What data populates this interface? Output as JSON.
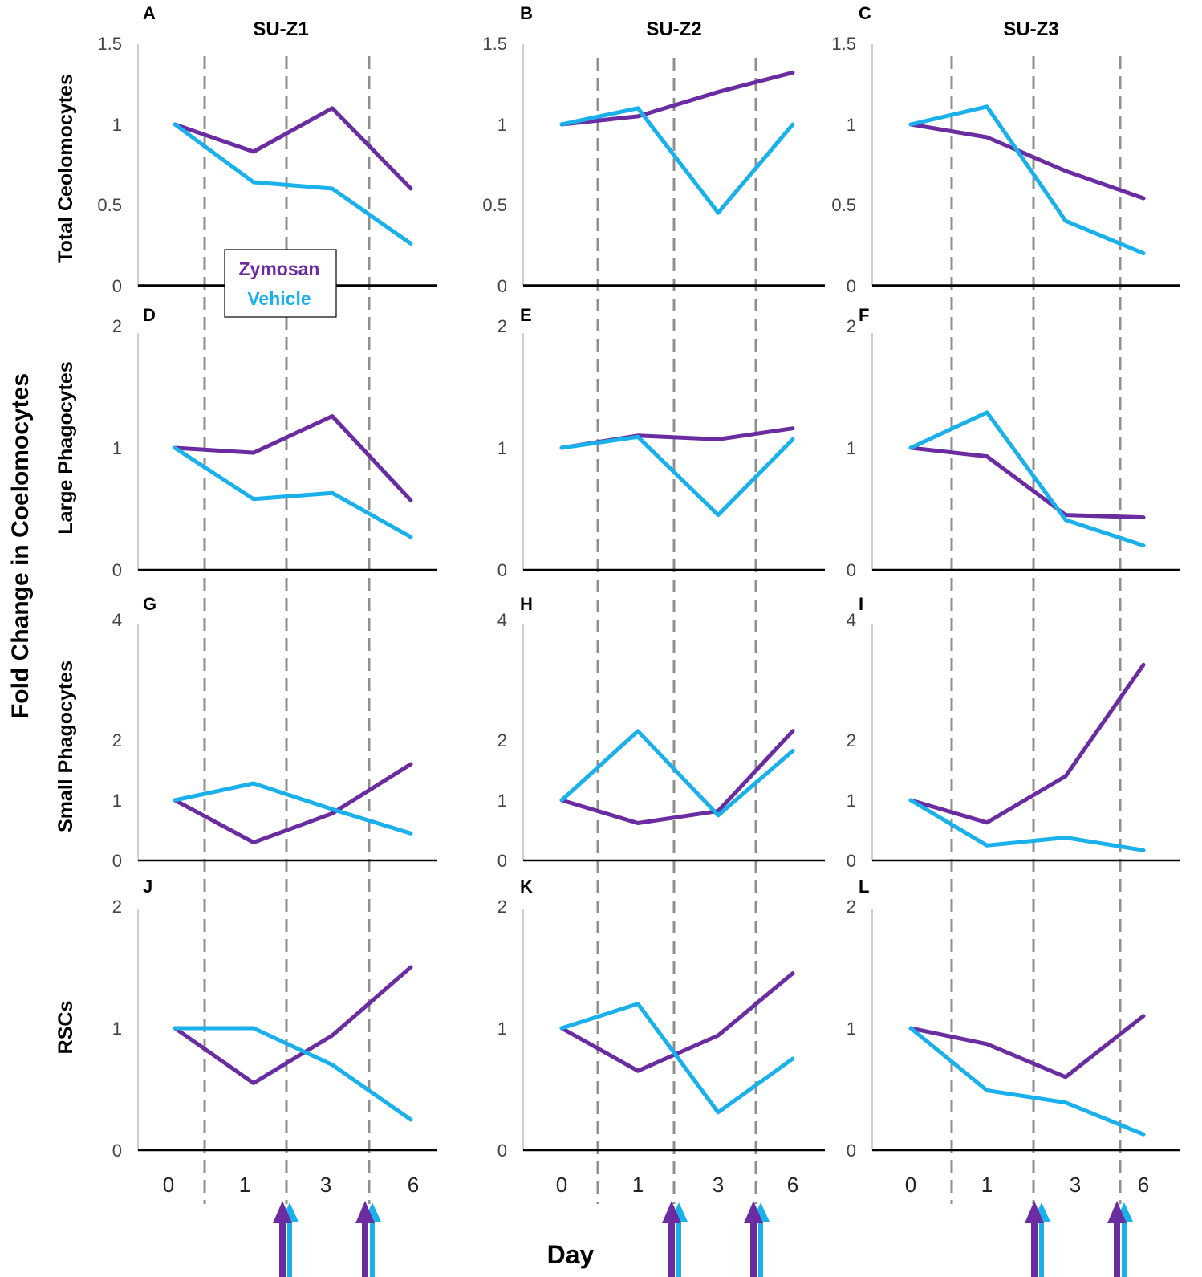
{
  "colors": {
    "zymosan": "#6a2ca0",
    "vehicle": "#1ab0ec",
    "dash": "#8f8f8f",
    "axis": "#000000"
  },
  "figure": {
    "y_axis_title": "Fold Change in Coelomocytes",
    "x_axis_title": "Day",
    "column_titles": [
      "SU-Z1",
      "SU-Z2",
      "SU-Z3"
    ],
    "row_labels": [
      "Total Ceolomocytes",
      "Large Phagocytes",
      "Small Phagocytes",
      "RSCs"
    ],
    "x_categories": [
      "0",
      "1",
      "3",
      "6"
    ],
    "legend": [
      {
        "label": "Zymosan",
        "color": "#6a2ca0"
      },
      {
        "label": "Vehicle",
        "color": "#1ab0ec"
      }
    ]
  },
  "chart_data": [
    {
      "type": "line",
      "panel": "A",
      "row_label": "Total Ceolomocytes",
      "title": "SU-Z1",
      "categories": [
        "0",
        "1",
        "3",
        "6"
      ],
      "ylim": [
        0,
        1.5
      ],
      "yticks": [
        "0",
        "0.5",
        "1",
        "1.5"
      ],
      "series": [
        {
          "name": "Zymosan",
          "values": [
            1.0,
            0.83,
            1.1,
            0.6
          ]
        },
        {
          "name": "Vehicle",
          "values": [
            1.0,
            0.64,
            0.6,
            0.26
          ]
        }
      ]
    },
    {
      "type": "line",
      "panel": "B",
      "row_label": "Total Ceolomocytes",
      "title": "SU-Z2",
      "categories": [
        "0",
        "1",
        "3",
        "6"
      ],
      "ylim": [
        0,
        1.5
      ],
      "yticks": [
        "0",
        "0.5",
        "1",
        "1.5"
      ],
      "series": [
        {
          "name": "Zymosan",
          "values": [
            1.0,
            1.05,
            1.2,
            1.32
          ]
        },
        {
          "name": "Vehicle",
          "values": [
            1.0,
            1.1,
            0.45,
            1.0
          ]
        }
      ]
    },
    {
      "type": "line",
      "panel": "C",
      "row_label": "Total Ceolomocytes",
      "title": "SU-Z3",
      "categories": [
        "0",
        "1",
        "3",
        "6"
      ],
      "ylim": [
        0,
        1.5
      ],
      "yticks": [
        "0",
        "0.5",
        "1",
        "1.5"
      ],
      "series": [
        {
          "name": "Zymosan",
          "values": [
            1.0,
            0.92,
            0.71,
            0.54
          ]
        },
        {
          "name": "Vehicle",
          "values": [
            1.0,
            1.11,
            0.4,
            0.2
          ]
        }
      ]
    },
    {
      "type": "line",
      "panel": "D",
      "row_label": "Large Phagocytes",
      "categories": [
        "0",
        "1",
        "3",
        "6"
      ],
      "ylim": [
        0,
        2
      ],
      "yticks": [
        "0",
        "1",
        "2"
      ],
      "series": [
        {
          "name": "Zymosan",
          "values": [
            1.0,
            0.96,
            1.26,
            0.57
          ]
        },
        {
          "name": "Vehicle",
          "values": [
            1.0,
            0.58,
            0.63,
            0.27
          ]
        }
      ]
    },
    {
      "type": "line",
      "panel": "E",
      "row_label": "Large Phagocytes",
      "categories": [
        "0",
        "1",
        "3",
        "6"
      ],
      "ylim": [
        0,
        2
      ],
      "yticks": [
        "0",
        "1",
        "2"
      ],
      "series": [
        {
          "name": "Zymosan",
          "values": [
            1.0,
            1.1,
            1.07,
            1.16
          ]
        },
        {
          "name": "Vehicle",
          "values": [
            1.0,
            1.09,
            0.45,
            1.07
          ]
        }
      ]
    },
    {
      "type": "line",
      "panel": "F",
      "row_label": "Large Phagocytes",
      "categories": [
        "0",
        "1",
        "3",
        "6"
      ],
      "ylim": [
        0,
        2
      ],
      "yticks": [
        "0",
        "1",
        "2"
      ],
      "series": [
        {
          "name": "Zymosan",
          "values": [
            1.0,
            0.93,
            0.45,
            0.43
          ]
        },
        {
          "name": "Vehicle",
          "values": [
            1.0,
            1.29,
            0.41,
            0.2
          ]
        }
      ]
    },
    {
      "type": "line",
      "panel": "G",
      "row_label": "Small Phagocytes",
      "categories": [
        "0",
        "1",
        "3",
        "6"
      ],
      "ylim": [
        0,
        4
      ],
      "yticks": [
        "0",
        "1",
        "2",
        "4"
      ],
      "series": [
        {
          "name": "Zymosan",
          "values": [
            1.0,
            0.3,
            0.78,
            1.6
          ]
        },
        {
          "name": "Vehicle",
          "values": [
            1.0,
            1.28,
            0.85,
            0.45
          ]
        }
      ]
    },
    {
      "type": "line",
      "panel": "H",
      "row_label": "Small Phagocytes",
      "categories": [
        "0",
        "1",
        "3",
        "6"
      ],
      "ylim": [
        0,
        4
      ],
      "yticks": [
        "0",
        "1",
        "2",
        "4"
      ],
      "series": [
        {
          "name": "Zymosan",
          "values": [
            1.0,
            0.62,
            0.82,
            2.15
          ]
        },
        {
          "name": "Vehicle",
          "values": [
            1.0,
            2.15,
            0.75,
            1.82
          ]
        }
      ]
    },
    {
      "type": "line",
      "panel": "I",
      "row_label": "Small Phagocytes",
      "categories": [
        "0",
        "1",
        "3",
        "6"
      ],
      "ylim": [
        0,
        4
      ],
      "yticks": [
        "0",
        "1",
        "2",
        "4"
      ],
      "series": [
        {
          "name": "Zymosan",
          "values": [
            1.0,
            0.63,
            1.4,
            3.25
          ]
        },
        {
          "name": "Vehicle",
          "values": [
            1.0,
            0.25,
            0.38,
            0.17
          ]
        }
      ]
    },
    {
      "type": "line",
      "panel": "J",
      "row_label": "RSCs",
      "categories": [
        "0",
        "1",
        "3",
        "6"
      ],
      "ylim": [
        0,
        2
      ],
      "yticks": [
        "0",
        "1",
        "2"
      ],
      "series": [
        {
          "name": "Zymosan",
          "values": [
            1.0,
            0.55,
            0.94,
            1.5
          ]
        },
        {
          "name": "Vehicle",
          "values": [
            1.0,
            1.0,
            0.7,
            0.25
          ]
        }
      ]
    },
    {
      "type": "line",
      "panel": "K",
      "row_label": "RSCs",
      "categories": [
        "0",
        "1",
        "3",
        "6"
      ],
      "ylim": [
        0,
        2
      ],
      "yticks": [
        "0",
        "1",
        "2"
      ],
      "series": [
        {
          "name": "Zymosan",
          "values": [
            1.0,
            0.65,
            0.94,
            1.45
          ]
        },
        {
          "name": "Vehicle",
          "values": [
            1.0,
            1.2,
            0.31,
            0.75
          ]
        }
      ]
    },
    {
      "type": "line",
      "panel": "L",
      "row_label": "RSCs",
      "categories": [
        "0",
        "1",
        "3",
        "6"
      ],
      "ylim": [
        0,
        2
      ],
      "yticks": [
        "0",
        "1",
        "2"
      ],
      "series": [
        {
          "name": "Zymosan",
          "values": [
            1.0,
            0.87,
            0.6,
            1.1
          ]
        },
        {
          "name": "Vehicle",
          "values": [
            1.0,
            0.49,
            0.39,
            0.13
          ]
        }
      ]
    }
  ]
}
